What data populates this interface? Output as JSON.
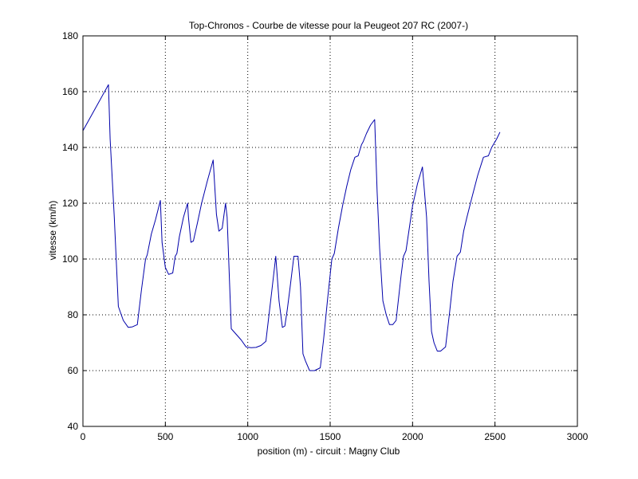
{
  "chart_data": {
    "type": "line",
    "title": "Top-Chronos - Courbe de vitesse pour la Peugeot 207 RC (2007-)",
    "xlabel": "position (m) - circuit : Magny Club",
    "ylabel": "vitesse (km/h)",
    "xlim": [
      0,
      3000
    ],
    "ylim": [
      40,
      180
    ],
    "xticks": [
      0,
      500,
      1000,
      1500,
      2000,
      2500,
      3000
    ],
    "yticks": [
      40,
      60,
      80,
      100,
      120,
      140,
      160,
      180
    ],
    "grid": true,
    "line_color": "#0000aa",
    "series": [
      {
        "x": [
          0,
          155,
          165,
          190,
          215,
          245,
          275,
          300,
          330,
          355,
          380,
          390,
          415,
          440,
          470,
          480,
          500,
          520,
          545,
          560,
          570,
          585,
          610,
          635,
          640,
          655,
          670,
          695,
          720,
          755,
          790,
          810,
          825,
          845,
          865,
          875,
          900,
          930,
          960,
          990,
          1020,
          1050,
          1080,
          1110,
          1145,
          1170,
          1190,
          1210,
          1225,
          1240,
          1255,
          1280,
          1305,
          1320,
          1335,
          1350,
          1375,
          1405,
          1440,
          1460,
          1485,
          1510,
          1525,
          1550,
          1575,
          1600,
          1625,
          1650,
          1670,
          1690,
          1700,
          1720,
          1745,
          1770,
          1785,
          1800,
          1820,
          1840,
          1860,
          1880,
          1900,
          1915,
          1930,
          1945,
          1960,
          1980,
          2000,
          2030,
          2060,
          2085,
          2100,
          2115,
          2130,
          2150,
          2170,
          2200,
          2225,
          2245,
          2270,
          2290,
          2310,
          2330,
          2360,
          2395,
          2430,
          2460,
          2480,
          2510,
          2530
        ],
        "values": [
          146,
          162.5,
          143,
          115,
          83,
          78,
          75.5,
          75.7,
          76.5,
          89,
          100,
          101.5,
          109,
          114,
          121,
          106,
          97,
          94.5,
          95,
          101,
          102,
          108,
          115,
          120,
          115,
          106,
          106.5,
          113,
          120,
          128,
          135.5,
          116,
          110,
          111,
          120,
          115,
          75,
          73,
          71,
          68.5,
          68.2,
          68.3,
          69,
          70.5,
          88,
          101,
          85,
          75.5,
          76,
          82,
          89,
          101,
          101,
          90,
          66,
          63.5,
          60,
          60,
          61,
          71,
          86,
          100,
          102,
          111,
          119,
          126,
          132,
          136.5,
          137,
          141,
          142,
          145,
          148,
          150,
          124,
          104,
          85,
          80,
          76.5,
          76.5,
          78,
          86,
          94,
          101,
          103,
          111,
          119,
          127,
          133,
          115,
          92,
          74,
          70,
          67,
          67,
          68.5,
          81,
          92,
          101,
          102.5,
          110,
          115,
          122,
          130,
          136.5,
          137,
          140,
          143,
          145.5
        ]
      }
    ]
  }
}
